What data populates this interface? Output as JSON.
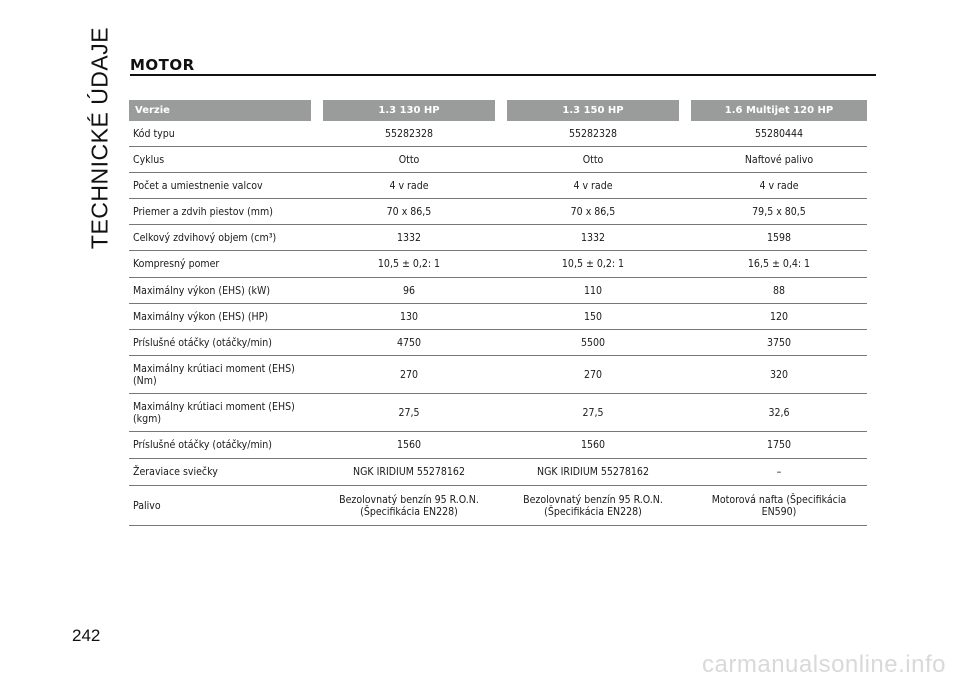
{
  "side_title": "TECHNICKÉ ÚDAJE",
  "page_number": "242",
  "section_title": "MOTOR",
  "table": {
    "headers": [
      "Verzie",
      "1.3 130 HP",
      "1.3 150 HP",
      "1.6 Multijet 120 HP"
    ],
    "rows": [
      {
        "label": "Kód typu",
        "values": [
          "55282328",
          "55282328",
          "55280444"
        ]
      },
      {
        "label": "Cyklus",
        "values": [
          "Otto",
          "Otto",
          "Naftové palivo"
        ]
      },
      {
        "label": "Počet a umiestnenie valcov",
        "values": [
          "4 v rade",
          "4 v rade",
          "4 v rade"
        ]
      },
      {
        "label": "Priemer a zdvih piestov (mm)",
        "values": [
          "70 x 86,5",
          "70 x 86,5",
          "79,5 x 80,5"
        ]
      },
      {
        "label": "Celkový zdvihový objem (cm³)",
        "values": [
          "1332",
          "1332",
          "1598"
        ]
      },
      {
        "label": "Kompresný pomer",
        "values": [
          "10,5 ± 0,2: 1",
          "10,5 ± 0,2: 1",
          "16,5 ± 0,4: 1"
        ]
      },
      {
        "label": "Maximálny výkon (EHS) (kW)",
        "values": [
          "96",
          "110",
          "88"
        ]
      },
      {
        "label": "Maximálny výkon (EHS) (HP)",
        "values": [
          "130",
          "150",
          "120"
        ]
      },
      {
        "label": "Príslušné otáčky (otáčky/min)",
        "values": [
          "4750",
          "5500",
          "3750"
        ]
      },
      {
        "label": "Maximálny krútiaci moment (EHS) (Nm)",
        "values": [
          "270",
          "270",
          "320"
        ]
      },
      {
        "label": "Maximálny krútiaci moment (EHS) (kgm)",
        "values": [
          "27,5",
          "27,5",
          "32,6"
        ]
      },
      {
        "label": "Príslušné otáčky (otáčky/min)",
        "values": [
          "1560",
          "1560",
          "1750"
        ]
      },
      {
        "label": "Žeraviace sviečky",
        "values": [
          "NGK IRIDIUM 55278162",
          "NGK IRIDIUM 55278162",
          "–"
        ]
      },
      {
        "label": "Palivo",
        "values": [
          "Bezolovnatý benzín 95 R.O.N. (Špecifikácia EN228)",
          "Bezolovnatý benzín 95 R.O.N. (Špecifikácia EN228)",
          "Motorová nafta (Špecifikácia EN590)"
        ]
      }
    ]
  },
  "watermark": "carmanualsonline.info"
}
